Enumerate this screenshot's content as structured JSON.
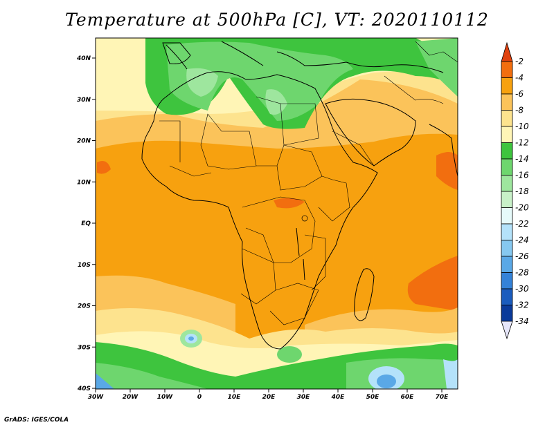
{
  "title": "Temperature at 500hPa [C], VT: 2020110112",
  "credit": "GrADS: IGES/COLA",
  "lat_labels": [
    "40N",
    "30N",
    "20N",
    "10N",
    "EQ",
    "10S",
    "20S",
    "30S",
    "40S"
  ],
  "lon_labels": [
    "30W",
    "20W",
    "10W",
    "0",
    "10E",
    "20E",
    "30E",
    "40E",
    "50E",
    "60E",
    "70E"
  ],
  "colorbar": {
    "labels": [
      "-2",
      "-4",
      "-6",
      "-8",
      "-10",
      "-12",
      "-14",
      "-16",
      "-18",
      "-20",
      "-22",
      "-24",
      "-26",
      "-28",
      "-30",
      "-32",
      "-34"
    ],
    "colors": [
      "#e0420f",
      "#f26e0f",
      "#f7a10f",
      "#fbc35a",
      "#fde38e",
      "#fff5b6",
      "#3ec43e",
      "#6ed66e",
      "#9ee69e",
      "#c8f0c8",
      "#e6fafa",
      "#b4e2fa",
      "#86c8f0",
      "#5aa8e6",
      "#3482d8",
      "#1a5cbe",
      "#0a3a9a",
      "#062070",
      "#e6e6fa"
    ]
  },
  "map_colors": {
    "orange_dark": "#f26e0f",
    "orange": "#f7a10f",
    "orange_light": "#fbc35a",
    "yellow": "#fde38e",
    "yellow_pale": "#fff5b6",
    "green": "#3ec43e",
    "green_mid": "#6ed66e",
    "green_light": "#9ee69e",
    "blue_light": "#b4e2fa",
    "blue": "#5aa8e6",
    "coastline": "#000000"
  }
}
